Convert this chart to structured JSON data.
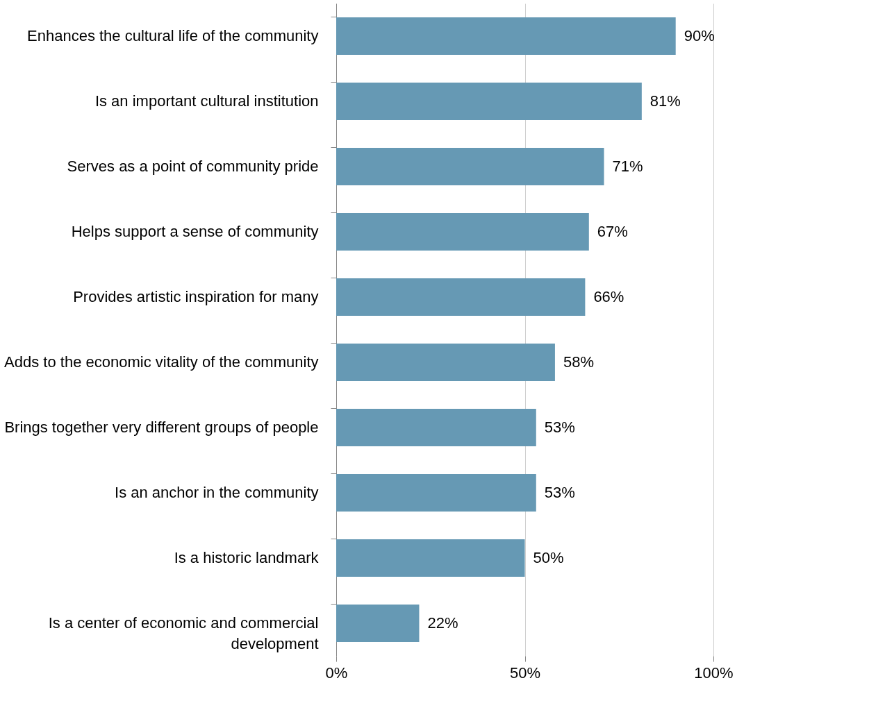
{
  "chart_data": {
    "type": "bar",
    "orientation": "horizontal",
    "categories": [
      "Enhances the cultural life of the community",
      "Is an important cultural institution",
      "Serves as a point of community pride",
      "Helps support a sense of community",
      "Provides artistic inspiration for many",
      "Adds to the economic vitality of the community",
      "Brings together very different groups of people",
      "Is an anchor in the community",
      "Is a historic landmark",
      "Is a center of economic and commercial development"
    ],
    "values": [
      90,
      81,
      71,
      67,
      66,
      58,
      53,
      53,
      50,
      22
    ],
    "value_labels": [
      "90%",
      "81%",
      "71%",
      "67%",
      "66%",
      "58%",
      "53%",
      "53%",
      "50%",
      "22%"
    ],
    "color": "#6699b4",
    "xlim": [
      0,
      100
    ],
    "xticks": [
      {
        "value": 0,
        "label": "0%"
      },
      {
        "value": 50,
        "label": "50%"
      },
      {
        "value": 100,
        "label": "100%"
      }
    ],
    "grid": "x"
  }
}
